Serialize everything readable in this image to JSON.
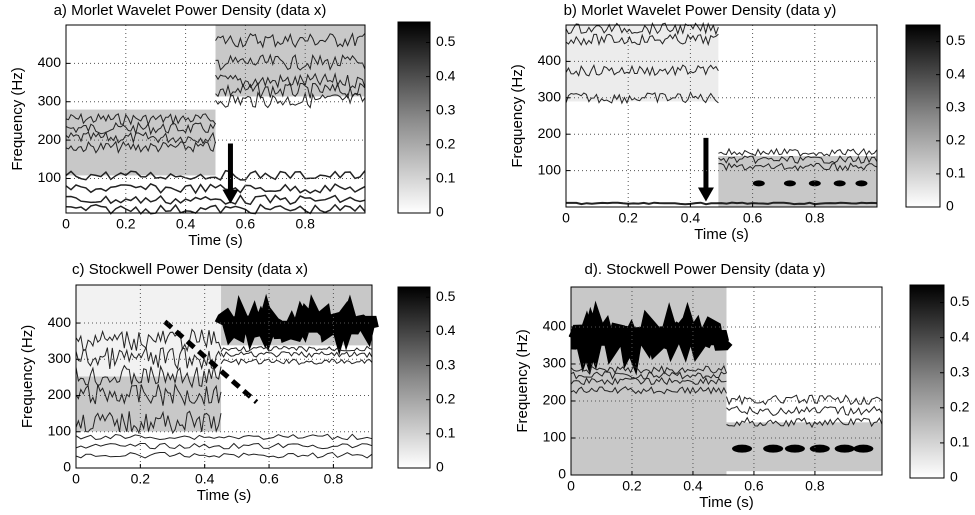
{
  "chart_data": [
    {
      "type": "contour",
      "title": "a) Morlet Wavelet Power Density (data x)",
      "x_label": "Time (s)",
      "y_label": "Frequency (Hz)",
      "xlim": [
        0,
        1
      ],
      "xticks": [
        0,
        0.2,
        0.4,
        0.6,
        0.8
      ],
      "ylim": [
        10,
        500
      ],
      "yticks": [
        100,
        200,
        300,
        400
      ],
      "grid": true,
      "colorbar": {
        "lim": [
          0,
          0.56
        ],
        "ticks": [
          0,
          0.1,
          0.2,
          0.3,
          0.4,
          0.5
        ]
      }
    },
    {
      "type": "contour",
      "title": "b) Morlet Wavelet Power Density (data y)",
      "x_label": "Time (s)",
      "y_label": "Frequency (Hz)",
      "xlim": [
        0,
        1
      ],
      "xticks": [
        0,
        0.2,
        0.4,
        0.6,
        0.8
      ],
      "ylim": [
        0,
        500
      ],
      "yticks": [
        100,
        200,
        300,
        400
      ],
      "grid": true,
      "colorbar": {
        "lim": [
          0,
          0.55
        ],
        "ticks": [
          0,
          0.1,
          0.2,
          0.3,
          0.4,
          0.5
        ]
      }
    },
    {
      "type": "contour",
      "title": "c) Stockwell Power Density (data x)",
      "x_label": "Time (s)",
      "y_label": "Frequency (Hz)",
      "xlim": [
        0,
        0.92
      ],
      "xticks": [
        0,
        0.2,
        0.4,
        0.6,
        0.8
      ],
      "ylim": [
        0,
        505
      ],
      "yticks": [
        0,
        100,
        200,
        300,
        400
      ],
      "grid": true,
      "colorbar": {
        "lim": [
          0,
          0.53
        ],
        "ticks": [
          0,
          0.1,
          0.2,
          0.3,
          0.4,
          0.5
        ]
      }
    },
    {
      "type": "contour",
      "title": "d). Stockwell Power Density (data y)",
      "x_label": "Time (s)",
      "y_label": "Frequency (Hz)",
      "xlim": [
        0,
        1.02
      ],
      "xticks": [
        0,
        0.2,
        0.4,
        0.6,
        0.8
      ],
      "ylim": [
        0,
        508
      ],
      "yticks": [
        0,
        100,
        200,
        300,
        400
      ],
      "grid": true,
      "colorbar": {
        "lim": [
          0,
          0.55
        ],
        "ticks": [
          0,
          0.1,
          0.2,
          0.3,
          0.4,
          0.5
        ]
      }
    }
  ]
}
